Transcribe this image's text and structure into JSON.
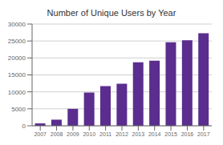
{
  "chart_data": {
    "type": "bar",
    "title": "Number of Unique Users by Year",
    "categories": [
      "2007",
      "2008",
      "2009",
      "2010",
      "2011",
      "2012",
      "2013",
      "2014",
      "2015",
      "2016",
      "2017"
    ],
    "values": [
      700,
      1800,
      5000,
      9800,
      11700,
      12400,
      18700,
      19200,
      24600,
      25200,
      27300
    ],
    "color": "#5b2d8e",
    "ylim": [
      0,
      30000
    ],
    "yticks": [
      0,
      5000,
      10000,
      15000,
      20000,
      25000,
      30000
    ],
    "grid": true
  }
}
